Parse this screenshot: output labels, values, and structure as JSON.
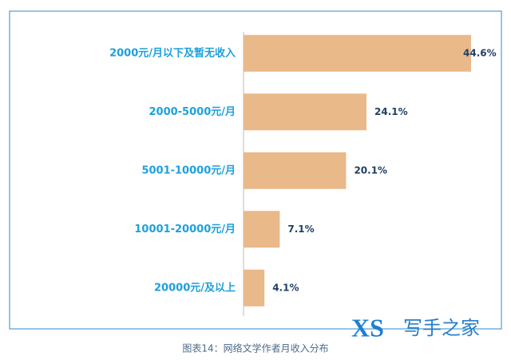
{
  "chart_data": {
    "type": "hbar",
    "caption": "图表14：网络文学作者月收入分布",
    "categories": [
      "2000元/月以下及暂无收入",
      "2000-5000元/月",
      "5001-10000元/月",
      "10001-20000元/月",
      "20000元/及以上"
    ],
    "values": [
      44.6,
      24.1,
      20.1,
      7.1,
      4.1
    ],
    "value_labels": [
      "44.6%",
      "24.1%",
      "20.1%",
      "7.1%",
      "4.1%"
    ],
    "color": "#e9b98a"
  },
  "watermark": {
    "logo": "XS",
    "text": "写手之家"
  }
}
